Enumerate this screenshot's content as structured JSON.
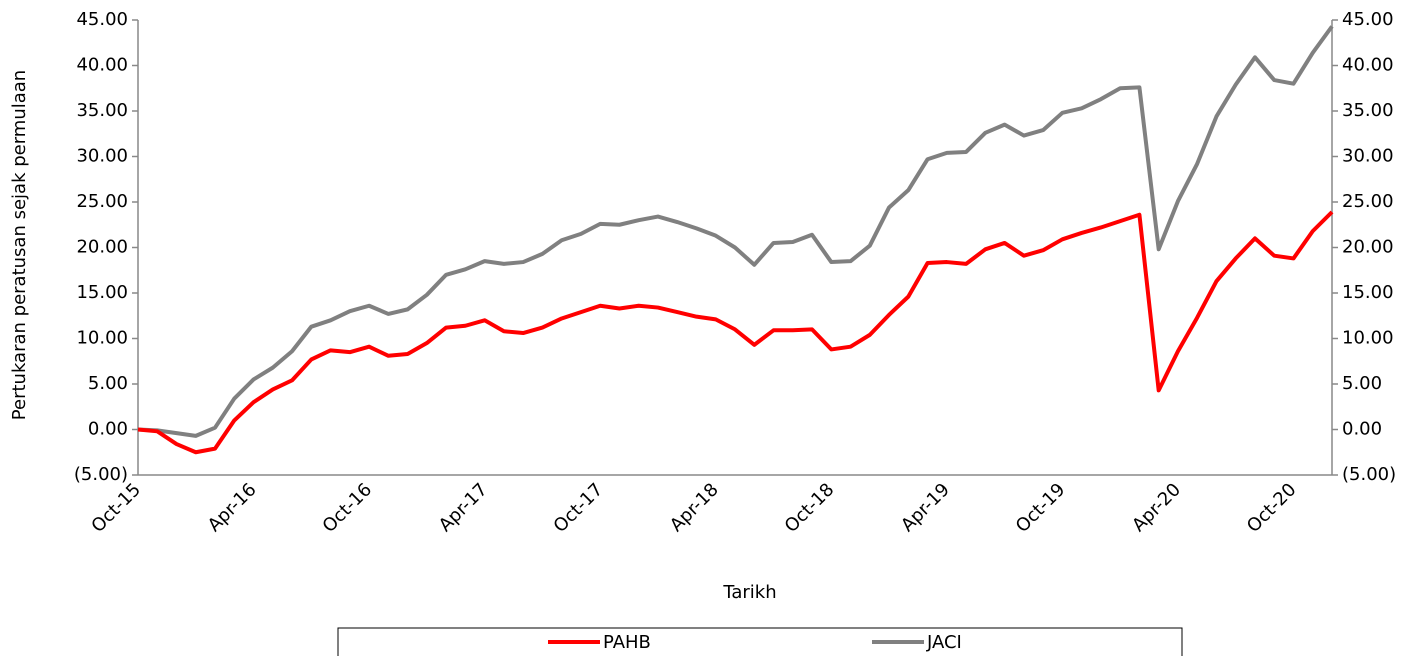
{
  "chart_data": {
    "type": "line",
    "y_label": "Pertukaran peratusan sejak permulaan",
    "x_label": "Tarikh",
    "categories": [
      "Oct-15",
      null,
      null,
      null,
      null,
      null,
      "Apr-16",
      null,
      null,
      null,
      null,
      null,
      "Oct-16",
      null,
      null,
      null,
      null,
      null,
      "Apr-17",
      null,
      null,
      null,
      null,
      null,
      "Oct-17",
      null,
      null,
      null,
      null,
      null,
      "Apr-18",
      null,
      null,
      null,
      null,
      null,
      "Oct-18",
      null,
      null,
      null,
      null,
      null,
      "Apr-19",
      null,
      null,
      null,
      null,
      null,
      "Oct-19",
      null,
      null,
      null,
      null,
      null,
      "Apr-20",
      null,
      null,
      null,
      null,
      null,
      "Oct-20",
      null,
      null
    ],
    "series": [
      {
        "name": "PAHB",
        "color": "#ff0000",
        "values": [
          0.0,
          -0.2,
          -1.6,
          -2.5,
          -2.1,
          1.0,
          3.0,
          4.4,
          5.4,
          7.7,
          8.7,
          8.5,
          9.1,
          8.1,
          8.3,
          9.5,
          11.2,
          11.4,
          12.0,
          10.8,
          10.6,
          11.2,
          12.2,
          12.9,
          13.6,
          13.3,
          13.6,
          13.4,
          12.9,
          12.4,
          12.1,
          11.0,
          9.3,
          10.9,
          10.9,
          11.0,
          8.8,
          9.1,
          10.4,
          12.6,
          14.6,
          18.3,
          18.4,
          18.2,
          19.8,
          20.5,
          19.1,
          19.7,
          20.9,
          21.6,
          22.2,
          22.9,
          23.6,
          4.3,
          8.6,
          12.3,
          16.3,
          18.8,
          21.0,
          19.1,
          18.8,
          21.8,
          23.9
        ]
      },
      {
        "name": "JACI",
        "color": "#808080",
        "axis": "y2",
        "values": [
          0.0,
          -0.1,
          -0.4,
          -0.7,
          0.2,
          3.4,
          5.5,
          6.8,
          8.6,
          11.3,
          12.0,
          13.0,
          13.6,
          12.7,
          13.2,
          14.8,
          17.0,
          17.6,
          18.5,
          18.2,
          18.4,
          19.3,
          20.8,
          21.5,
          22.6,
          22.5,
          23.0,
          23.4,
          22.8,
          22.1,
          21.3,
          20.0,
          18.1,
          20.5,
          20.6,
          21.4,
          18.4,
          18.5,
          20.2,
          24.4,
          26.3,
          29.7,
          30.4,
          30.5,
          32.6,
          33.5,
          32.3,
          32.9,
          34.8,
          35.3,
          36.3,
          37.5,
          37.6,
          19.8,
          25.1,
          29.2,
          34.4,
          37.9,
          40.9,
          38.4,
          38.0,
          41.4,
          44.3
        ]
      }
    ],
    "ylim": [
      -5,
      45
    ],
    "yticks": [
      {
        "value": -5,
        "label": "(5.00)"
      },
      {
        "value": 0,
        "label": "0.00"
      },
      {
        "value": 5,
        "label": "5.00"
      },
      {
        "value": 10,
        "label": "10.00"
      },
      {
        "value": 15,
        "label": "15.00"
      },
      {
        "value": 20,
        "label": "20.00"
      },
      {
        "value": 25,
        "label": "25.00"
      },
      {
        "value": 30,
        "label": "30.00"
      },
      {
        "value": 35,
        "label": "35.00"
      },
      {
        "value": 40,
        "label": "40.00"
      },
      {
        "value": 45,
        "label": "45.00"
      }
    ],
    "y2lim": [
      -5,
      45
    ],
    "y2ticks": [
      {
        "value": -5,
        "label": "(5.00)"
      },
      {
        "value": 0,
        "label": "0.00"
      },
      {
        "value": 5,
        "label": "5.00"
      },
      {
        "value": 10,
        "label": "10.00"
      },
      {
        "value": 15,
        "label": "15.00"
      },
      {
        "value": 20,
        "label": "20.00"
      },
      {
        "value": 25,
        "label": "25.00"
      },
      {
        "value": 30,
        "label": "30.00"
      },
      {
        "value": 35,
        "label": "35.00"
      },
      {
        "value": 40,
        "label": "40.00"
      },
      {
        "value": 45,
        "label": "45.00"
      }
    ],
    "negative_tick_color": "#ff0000",
    "grid": false,
    "legend": "bottom"
  }
}
